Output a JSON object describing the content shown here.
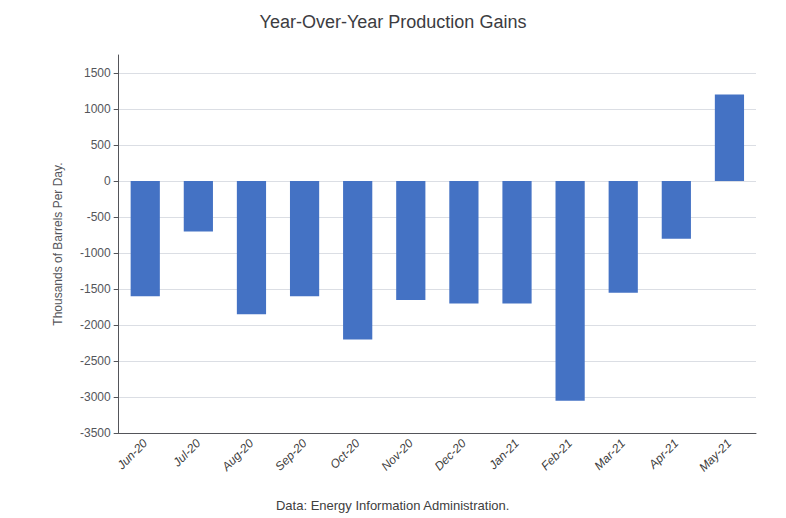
{
  "chart_data": {
    "type": "bar",
    "title": "Year-Over-Year Production Gains",
    "ylabel": "Thousands of Barrels Per Day.",
    "annotations": [
      "Data: Energy Information Administration."
    ],
    "categories": [
      "Jun-20",
      "Jul-20",
      "Aug-20",
      "Sep-20",
      "Oct-20",
      "Nov-20",
      "Dec-20",
      "Jan-21",
      "Feb-21",
      "Mar-21",
      "Apr-21",
      "May-21"
    ],
    "values": [
      -1600,
      -700,
      -1850,
      -1600,
      -2200,
      -1650,
      -1700,
      -1700,
      -3050,
      -1550,
      -800,
      1200
    ],
    "color": "#4472C4",
    "ylim": [
      -3500,
      1750
    ],
    "yticks": [
      -3500,
      -3000,
      -2500,
      -2000,
      -1500,
      -1000,
      -500,
      0,
      500,
      1000,
      1500
    ],
    "grid": true
  }
}
